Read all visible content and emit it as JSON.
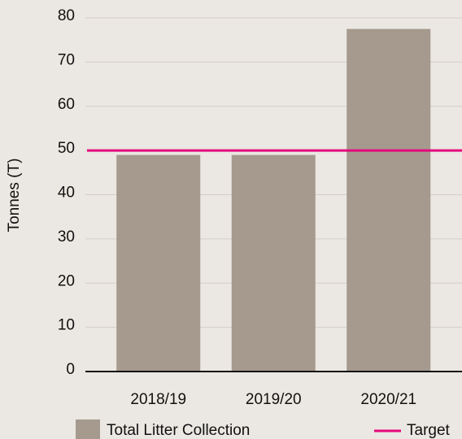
{
  "chart_data": {
    "type": "bar",
    "y_label": "Tonnes (T)",
    "categories": [
      "2018/19",
      "2019/20",
      "2020/21"
    ],
    "series": [
      {
        "name": "Total Litter Collection",
        "color": "#a59a8d",
        "values": [
          49,
          49,
          77.5
        ]
      }
    ],
    "target": {
      "name": "Target",
      "value": 50,
      "color": "#e5087e"
    },
    "ylim": [
      0,
      80
    ],
    "yticks": [
      0,
      10,
      20,
      30,
      40,
      50,
      60,
      70,
      80
    ],
    "grid": true
  }
}
